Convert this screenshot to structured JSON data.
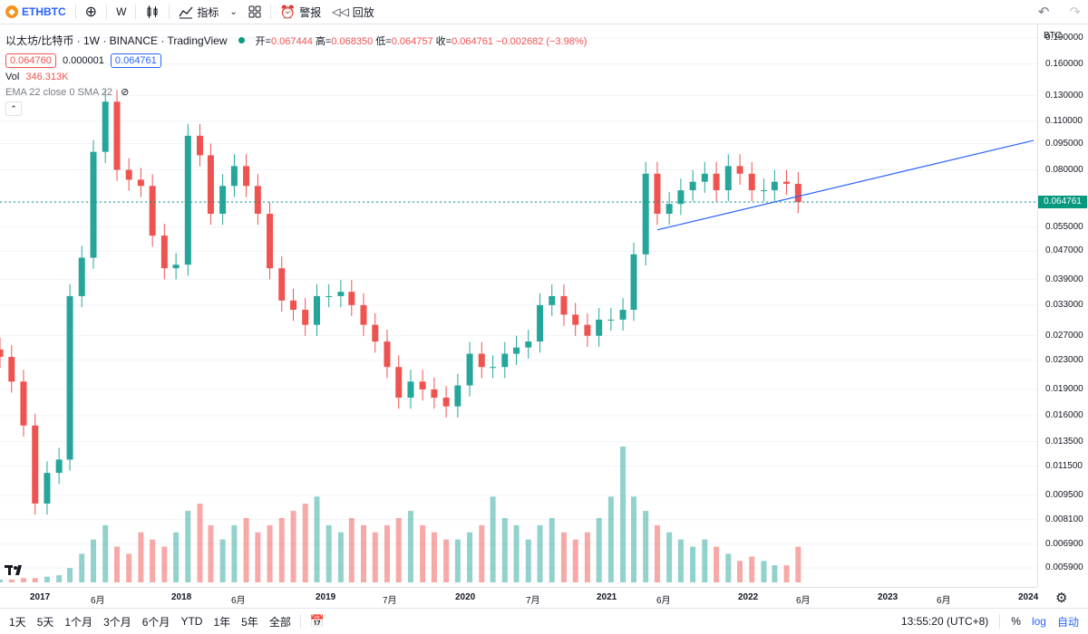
{
  "toolbar": {
    "symbol": "ETHBTC",
    "interval": "W",
    "indicators_label": "指标",
    "alert_label": "警报",
    "replay_label": "回放"
  },
  "legend": {
    "title": "以太坊/比特币 · 1W · BINANCE · TradingView",
    "open_label": "开=",
    "open": "0.067444",
    "high_label": "高=",
    "high": "0.068350",
    "low_label": "低=",
    "low": "0.064757",
    "close_label": "收=",
    "close": "0.064761",
    "change": "−0.002682 (−3.98%)",
    "bid": "0.064760",
    "spread": "0.000001",
    "ask": "0.064761",
    "vol_label": "Vol",
    "vol_value": "346.313K",
    "ema_label": "EMA 22 close 0 SMA 22"
  },
  "price_axis": {
    "currency": "BTC",
    "ticks": [
      "0.190000",
      "0.160000",
      "0.130000",
      "0.110000",
      "0.095000",
      "0.080000",
      "0.065000",
      "0.055000",
      "0.047000",
      "0.039000",
      "0.033000",
      "0.027000",
      "0.023000",
      "0.019000",
      "0.016000",
      "0.013500",
      "0.011500",
      "0.009500",
      "0.008100",
      "0.006900",
      "0.005900"
    ],
    "last_price": "0.064761"
  },
  "time_axis": {
    "labels": [
      "2017",
      "6月",
      "2018",
      "6月",
      "2019",
      "7月",
      "2020",
      "7月",
      "2021",
      "6月",
      "2022",
      "6月",
      "2023",
      "6月",
      "2024"
    ]
  },
  "bottom_bar": {
    "ranges": [
      "1天",
      "5天",
      "1个月",
      "3个月",
      "6个月",
      "YTD",
      "1年",
      "5年",
      "全部"
    ],
    "clock": "13:55:20 (UTC+8)",
    "percent": "%",
    "log": "log",
    "auto": "自动"
  },
  "colors": {
    "up": "#26a69a",
    "down": "#ef5350",
    "trendline": "#2962ff",
    "last_price": "#089981"
  },
  "chart_data": {
    "type": "candlestick",
    "title": "",
    "xlabel": "",
    "ylabel": "",
    "log_scale": true,
    "ylim": [
      0.0055,
      0.2
    ],
    "x": [
      "2016-09",
      "2016-10",
      "2016-11",
      "2016-12",
      "2017-01",
      "2017-02",
      "2017-03",
      "2017-04",
      "2017-05",
      "2017-06",
      "2017-07",
      "2017-08",
      "2017-09",
      "2017-10",
      "2017-11",
      "2017-12",
      "2018-01",
      "2018-02",
      "2018-03",
      "2018-04",
      "2018-05",
      "2018-06",
      "2018-07",
      "2018-08",
      "2018-09",
      "2018-10",
      "2018-11",
      "2018-12",
      "2019-01",
      "2019-02",
      "2019-03",
      "2019-04",
      "2019-05",
      "2019-06",
      "2019-07",
      "2019-08",
      "2019-09",
      "2019-10",
      "2019-11",
      "2019-12",
      "2020-01",
      "2020-02",
      "2020-03",
      "2020-04",
      "2020-05",
      "2020-06",
      "2020-07",
      "2020-08",
      "2020-09",
      "2020-10",
      "2020-11",
      "2020-12",
      "2021-01",
      "2021-02",
      "2021-03",
      "2021-04",
      "2021-05",
      "2021-06",
      "2021-07",
      "2021-08",
      "2021-09",
      "2021-10",
      "2021-11",
      "2021-12",
      "2022-01",
      "2022-02",
      "2022-03",
      "2022-04",
      "2022-05"
    ],
    "close": [
      0.0235,
      0.02,
      0.015,
      0.009,
      0.011,
      0.012,
      0.035,
      0.045,
      0.09,
      0.125,
      0.08,
      0.075,
      0.072,
      0.052,
      0.042,
      0.043,
      0.1,
      0.088,
      0.06,
      0.072,
      0.082,
      0.072,
      0.06,
      0.042,
      0.034,
      0.032,
      0.029,
      0.035,
      0.035,
      0.036,
      0.033,
      0.029,
      0.026,
      0.022,
      0.018,
      0.02,
      0.019,
      0.018,
      0.017,
      0.0195,
      0.024,
      0.022,
      0.022,
      0.024,
      0.025,
      0.026,
      0.033,
      0.035,
      0.031,
      0.029,
      0.027,
      0.03,
      0.03,
      0.032,
      0.046,
      0.078,
      0.06,
      0.064,
      0.07,
      0.074,
      0.078,
      0.07,
      0.082,
      0.078,
      0.07,
      0.07,
      0.074,
      0.073,
      0.064761
    ],
    "volume_unit": "relative",
    "volume": [
      2,
      2,
      3,
      3,
      4,
      5,
      10,
      20,
      30,
      40,
      25,
      20,
      35,
      30,
      25,
      35,
      50,
      55,
      40,
      30,
      40,
      45,
      35,
      40,
      45,
      50,
      55,
      60,
      40,
      35,
      45,
      40,
      35,
      40,
      45,
      50,
      40,
      35,
      30,
      30,
      35,
      40,
      60,
      45,
      40,
      30,
      40,
      45,
      35,
      30,
      35,
      45,
      60,
      95,
      60,
      50,
      40,
      35,
      30,
      25,
      30,
      25,
      20,
      15,
      18,
      15,
      12,
      12,
      25
    ],
    "trendline": {
      "from": [
        "2021-05",
        0.054
      ],
      "to": [
        "2024-01",
        0.097
      ]
    }
  }
}
